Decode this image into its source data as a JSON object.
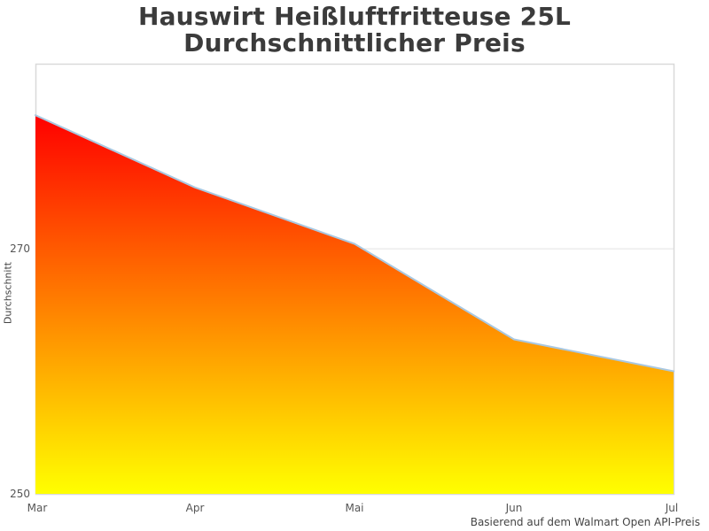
{
  "title": {
    "line1": "Hauswirt Heißluftfritteuse 25L",
    "line2": "Durchschnittlicher Preis"
  },
  "footer": {
    "caption": "Basierend auf dem Walmart Open API-Preis"
  },
  "chart_data": {
    "type": "area",
    "title": "Hauswirt Heißluftfritteuse 25L Durchschnittlicher Preis",
    "categories": [
      "Mar",
      "Apr",
      "Mai",
      "Jun",
      "Jul"
    ],
    "values": [
      280.9,
      275.0,
      270.4,
      262.6,
      260.0
    ],
    "xlabel": "",
    "ylabel": "Durchschnitt",
    "ylim": [
      250,
      285.1
    ],
    "yticks": [
      {
        "value": 270,
        "label": "270"
      },
      {
        "value": 250,
        "label": "250"
      }
    ],
    "grid": "horizontal gridline at y=270 only",
    "legend": "none",
    "caption": "Basierend auf dem Walmart Open API-Preis",
    "colors": {
      "area_fill_top": "#ff0000",
      "area_fill_bottom": "#ffff00",
      "line": "#a9c8e1",
      "gridline": "#e2e2e2",
      "plot_border": "#d9d9d9",
      "title_text": "#3b3b3b",
      "tick_text": "#555555"
    }
  }
}
